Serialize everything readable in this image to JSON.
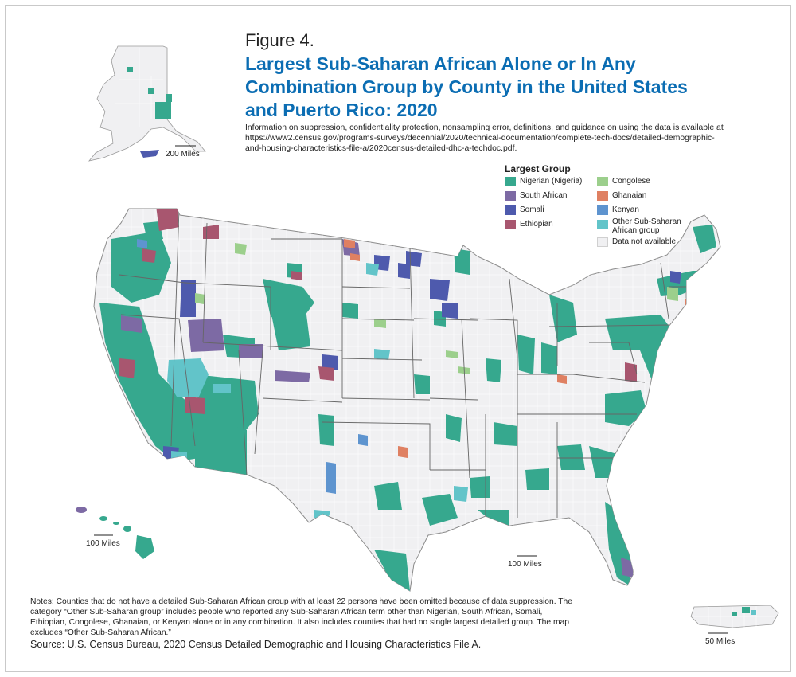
{
  "figure_label": "Figure 4.",
  "title_lines": [
    "Largest Sub-Saharan African Alone or In Any",
    "Combination Group by County in the United States",
    "and Puerto Rico: 2020"
  ],
  "info_lines": [
    "Information on suppression, confidentiality protection, nonsampling error, definitions, and guidance on using the data is available at",
    "https://www2.census.gov/programs-surveys/decennial/2020/technical-documentation/complete-tech-docs/detailed-demographic-",
    "and-housing-characteristics-file-a/2020census-detailed-dhc-a-techdoc.pdf."
  ],
  "legend": {
    "title": "Largest Group",
    "items": [
      {
        "label": "Nigerian (Nigeria)",
        "color": "#36a88e"
      },
      {
        "label": "South African",
        "color": "#7d6aa4"
      },
      {
        "label": "Somali",
        "color": "#4e5aad"
      },
      {
        "label": "Ethiopian",
        "color": "#a8566f"
      },
      {
        "label": "Congolese",
        "color": "#9ccf8c"
      },
      {
        "label": "Ghanaian",
        "color": "#df8062"
      },
      {
        "label": "Kenyan",
        "color": "#5e94cf"
      },
      {
        "label": "Other Sub-Saharan",
        "label2": "African group",
        "color": "#62c4c9"
      },
      {
        "label": "Data not available",
        "color": "#f0f0f2"
      }
    ]
  },
  "scale_labels": {
    "alaska": "200 Miles",
    "hawaii": "100 Miles",
    "conus": "100 Miles",
    "puerto_rico": "50 Miles"
  },
  "notes_lines": [
    "Notes: Counties that do not have a detailed Sub-Saharan African group with at least 22 persons have been omitted because of data suppression. The",
    "category “Other Sub-Saharan group” includes people who reported any Sub-Saharan African term other than Nigerian, South African, Somali,",
    "Ethiopian, Congolese, Ghanaian, or Kenyan alone or in any combination. It also includes counties that had no single largest detailed group. The map",
    "excludes “Other Sub-Saharan African.”"
  ],
  "source": "Source: U.S. Census Bureau, 2020 Census Detailed Demographic and Housing Characteristics File A."
}
